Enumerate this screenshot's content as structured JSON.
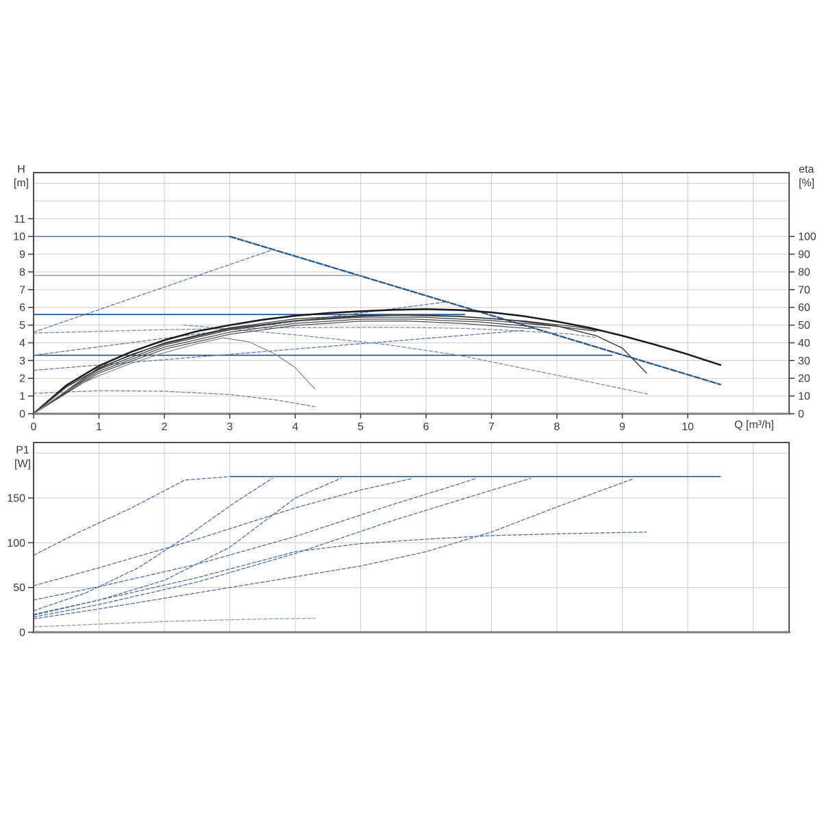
{
  "page": {
    "background": "#ffffff"
  },
  "colors": {
    "grid": "#cbcbcb",
    "border": "#4d4d4d",
    "axis_baseline": "#7d7d7d",
    "tick": "#3c3c3c",
    "label_text": "#3a3742",
    "solid_blue": "#20598f",
    "max_curve_blue": "#2a5a8c",
    "dashed_blue": "#5d7aa6",
    "grey_blue": "#6d81a4",
    "power_blue": "#4d6f9e",
    "eta_black": "#1c1c1c"
  },
  "chart_data": [
    {
      "id": "qh-chart",
      "type": "line",
      "title": "",
      "x": {
        "label": "Q [m³/h]",
        "min": 0,
        "max": 11.55,
        "ticks": [
          0,
          1,
          2,
          3,
          4,
          5,
          6,
          7,
          8,
          9,
          10
        ],
        "grid": [
          1,
          2,
          3,
          4,
          5,
          6,
          7,
          8,
          9,
          10,
          11
        ],
        "show_tick_labels": true
      },
      "y_left": {
        "label_top": "H",
        "label_unit": "[m]",
        "min": 0,
        "max": 13.6,
        "ticks": [
          0,
          1,
          2,
          3,
          4,
          5,
          6,
          7,
          8,
          9,
          10,
          11
        ],
        "grid": [
          1,
          2,
          3,
          4,
          5,
          6,
          7,
          8,
          9,
          10,
          11,
          12,
          13
        ]
      },
      "y_right": {
        "label_top": "eta",
        "label_unit": "[%]",
        "min": 0,
        "max": 136,
        "ticks": [
          0,
          10,
          20,
          30,
          40,
          50,
          60,
          70,
          80,
          90,
          100
        ]
      },
      "series": [
        {
          "name": "const-head-10m",
          "color": "#58749f",
          "width": 1.5,
          "points": [
            [
              0,
              10
            ],
            [
              3,
              10
            ]
          ]
        },
        {
          "name": "max-speed-qh-curve",
          "color": "#2a5a8c",
          "width": 2.4,
          "dash": "9 3",
          "points": [
            [
              3,
              10
            ],
            [
              10.5,
              1.65
            ]
          ]
        },
        {
          "name": "const-head-7-8m",
          "color": "#7d8aa5",
          "width": 1.3,
          "points": [
            [
              0,
              7.8
            ],
            [
              5.03,
              7.8
            ]
          ]
        },
        {
          "name": "const-head-5-6m",
          "color": "#20598f",
          "width": 1.7,
          "points": [
            [
              0,
              5.6
            ],
            [
              6.59,
              5.6
            ]
          ]
        },
        {
          "name": "const-head-3-3m",
          "color": "#20598f",
          "width": 1.7,
          "points": [
            [
              0,
              3.3
            ],
            [
              8.84,
              3.3
            ]
          ]
        },
        {
          "name": "prop-pressure-high",
          "color": "#5d7aa6",
          "width": 1.3,
          "dash": "5 3",
          "points": [
            [
              0,
              4.6
            ],
            [
              3.68,
              9.28
            ]
          ]
        },
        {
          "name": "prop-pressure-mid",
          "color": "#5d7aa6",
          "width": 1.3,
          "dash": "5 3",
          "points": [
            [
              0,
              3.3
            ],
            [
              6.35,
              6.33
            ]
          ]
        },
        {
          "name": "prop-pressure-low",
          "color": "#5d7aa6",
          "width": 1.3,
          "dash": "5 3",
          "points": [
            [
              0,
              2.45
            ],
            [
              7.5,
              4.7
            ]
          ]
        },
        {
          "name": "setpoint-arc",
          "color": "#6d81a4",
          "width": 1.2,
          "dash": "5 3",
          "points": [
            [
              0,
              4.55
            ],
            [
              2,
              4.74
            ],
            [
              4,
              4.86
            ],
            [
              5.5,
              4.88
            ],
            [
              6.5,
              4.82
            ],
            [
              7.2,
              4.72
            ],
            [
              8.2,
              4.5
            ],
            [
              8.6,
              4.3
            ]
          ]
        },
        {
          "name": "mid-speed-qh-curve",
          "color": "#6d81a4",
          "width": 1.2,
          "dash": "5 3",
          "points": [
            [
              2.3,
              5.0
            ],
            [
              4,
              4.45
            ],
            [
              5.4,
              3.9
            ],
            [
              6.5,
              3.3
            ],
            [
              7.5,
              2.55
            ],
            [
              8.3,
              1.95
            ],
            [
              9.4,
              1.1
            ]
          ]
        },
        {
          "name": "min-speed-qh-curve",
          "color": "#6d81a4",
          "width": 1.3,
          "dash": "5 3",
          "points": [
            [
              0,
              1.15
            ],
            [
              1,
              1.3
            ],
            [
              2,
              1.27
            ],
            [
              3,
              1.08
            ],
            [
              3.7,
              0.78
            ],
            [
              4.3,
              0.4
            ]
          ]
        },
        {
          "name": "eta-curve-max-speed",
          "right": true,
          "color": "#1c1c1c",
          "width": 2.6,
          "points": [
            [
              0,
              0
            ],
            [
              0.5,
              16
            ],
            [
              1,
              27
            ],
            [
              1.5,
              35
            ],
            [
              2,
              41.5
            ],
            [
              2.5,
              46.5
            ],
            [
              3,
              50
            ],
            [
              3.5,
              53
            ],
            [
              4,
              55.3
            ],
            [
              4.5,
              56.8
            ],
            [
              5,
              57.8
            ],
            [
              5.5,
              58.6
            ],
            [
              6,
              59
            ],
            [
              6.5,
              58.5
            ],
            [
              7,
              57.2
            ],
            [
              7.5,
              55
            ],
            [
              8,
              52
            ],
            [
              8.5,
              48.5
            ],
            [
              9,
              44
            ],
            [
              9.5,
              39
            ],
            [
              10,
              33.5
            ],
            [
              10.5,
              27.5
            ]
          ]
        },
        {
          "name": "eta-curve-2",
          "right": true,
          "color": "#3f3f3f",
          "width": 1.5,
          "points": [
            [
              0,
              0
            ],
            [
              0.5,
              15
            ],
            [
              1,
              25.5
            ],
            [
              1.5,
              33.5
            ],
            [
              2,
              39.5
            ],
            [
              3,
              48
            ],
            [
              4,
              52.5
            ],
            [
              5,
              55
            ],
            [
              5.7,
              55.8
            ],
            [
              6.5,
              55
            ],
            [
              7.3,
              52.8
            ],
            [
              8,
              49.5
            ],
            [
              8.6,
              44
            ],
            [
              9,
              37
            ],
            [
              9.37,
              23
            ]
          ]
        },
        {
          "name": "eta-curve-3",
          "right": true,
          "color": "#2e2e2e",
          "width": 1.2,
          "points": [
            [
              0,
              0
            ],
            [
              1,
              26
            ],
            [
              2,
              40
            ],
            [
              3,
              48.5
            ],
            [
              4,
              53.5
            ],
            [
              5,
              55.4
            ],
            [
              5.7,
              55.6
            ],
            [
              6.5,
              54.8
            ],
            [
              7.5,
              52.3
            ],
            [
              8.3,
              49
            ],
            [
              8.85,
              45.5
            ]
          ]
        },
        {
          "name": "eta-curve-4",
          "right": true,
          "color": "#383838",
          "width": 1.2,
          "points": [
            [
              0,
              0
            ],
            [
              1,
              25
            ],
            [
              2,
              38.8
            ],
            [
              3,
              47.3
            ],
            [
              4,
              52.3
            ],
            [
              5,
              54.4
            ],
            [
              5.9,
              54.5
            ],
            [
              7,
              52.6
            ],
            [
              8,
              49.3
            ],
            [
              8.6,
              46.5
            ]
          ]
        },
        {
          "name": "eta-curve-5",
          "right": true,
          "color": "#434343",
          "width": 1.2,
          "points": [
            [
              0,
              0
            ],
            [
              1,
              24
            ],
            [
              2,
              37.6
            ],
            [
              3,
              46
            ],
            [
              4,
              51
            ],
            [
              5,
              53.3
            ],
            [
              5.8,
              53.4
            ],
            [
              6.8,
              51.8
            ],
            [
              7.9,
              48.3
            ]
          ]
        },
        {
          "name": "eta-curve-6",
          "right": true,
          "color": "#4e4e4e",
          "width": 1.2,
          "points": [
            [
              0,
              0
            ],
            [
              1,
              23
            ],
            [
              2,
              36.4
            ],
            [
              3,
              44.8
            ],
            [
              4,
              49.8
            ],
            [
              5,
              52.2
            ],
            [
              5.7,
              52.3
            ],
            [
              6.6,
              50.8
            ],
            [
              7.6,
              48
            ]
          ]
        },
        {
          "name": "eta-curve-min-speed",
          "right": true,
          "color": "#8c8c8c",
          "width": 1.3,
          "points": [
            [
              0,
              0
            ],
            [
              0.5,
              13
            ],
            [
              1,
              21.5
            ],
            [
              1.5,
              28.5
            ],
            [
              2,
              34.5
            ],
            [
              2.5,
              39.5
            ],
            [
              2.9,
              42.8
            ],
            [
              3.3,
              40.5
            ],
            [
              3.7,
              33.5
            ],
            [
              4,
              26
            ],
            [
              4.3,
              14
            ]
          ]
        }
      ]
    },
    {
      "id": "p1-chart",
      "type": "line",
      "title": "",
      "x": {
        "label": "",
        "min": 0,
        "max": 11.55,
        "ticks": [],
        "grid": [
          1,
          2,
          3,
          4,
          5,
          6,
          7,
          8,
          9,
          10,
          11
        ],
        "show_tick_labels": false
      },
      "y_left": {
        "label_top": "P1",
        "label_unit": "[W]",
        "min": 0,
        "max": 212,
        "ticks": [
          0,
          50,
          100,
          150
        ],
        "grid": [
          50,
          100,
          150,
          200
        ]
      },
      "series": [
        {
          "name": "max-power-limit",
          "color": "#20598f",
          "width": 1.7,
          "points": [
            [
              3.0,
              174
            ],
            [
              10.5,
              174
            ]
          ]
        },
        {
          "name": "power-curve-1",
          "color": "#4d6f9e",
          "width": 1.3,
          "dash": "5 3",
          "points": [
            [
              0,
              86
            ],
            [
              0.7,
              112
            ],
            [
              1.5,
              139
            ],
            [
              2.31,
              170
            ],
            [
              3.0,
              174
            ]
          ]
        },
        {
          "name": "power-curve-2",
          "color": "#4d6f9e",
          "width": 1.3,
          "dash": "5 3",
          "points": [
            [
              0,
              24
            ],
            [
              0.8,
              44
            ],
            [
              1.6,
              72
            ],
            [
              2.4,
              110
            ],
            [
              3.1,
              146
            ],
            [
              3.65,
              172
            ]
          ]
        },
        {
          "name": "power-curve-3",
          "color": "#4d6f9e",
          "width": 1.3,
          "dash": "5 3",
          "points": [
            [
              0,
              19
            ],
            [
              1,
              36
            ],
            [
              2,
              58
            ],
            [
              3,
              95
            ],
            [
              4,
              150
            ],
            [
              4.7,
              172
            ]
          ]
        },
        {
          "name": "power-curve-4",
          "color": "#4d6f9e",
          "width": 1.3,
          "dash": "5 3",
          "points": [
            [
              0,
              52
            ],
            [
              1,
              72
            ],
            [
              2.5,
              104
            ],
            [
              4,
              139
            ],
            [
              5,
              159
            ],
            [
              5.8,
              172
            ]
          ]
        },
        {
          "name": "power-curve-5",
          "color": "#4d6f9e",
          "width": 1.3,
          "dash": "5 3",
          "points": [
            [
              0,
              36
            ],
            [
              1,
              51
            ],
            [
              2.5,
              76
            ],
            [
              4,
              107
            ],
            [
              5.5,
              143
            ],
            [
              6.3,
              161
            ],
            [
              6.77,
              172
            ]
          ]
        },
        {
          "name": "power-curve-6",
          "color": "#4d6f9e",
          "width": 1.3,
          "dash": "5 3",
          "points": [
            [
              0,
              17
            ],
            [
              1,
              31
            ],
            [
              2.5,
              56
            ],
            [
              4,
              88
            ],
            [
              5.5,
              125
            ],
            [
              6.7,
              152
            ],
            [
              7.6,
              172
            ]
          ]
        },
        {
          "name": "power-curve-7",
          "color": "#4d6f9e",
          "width": 1.3,
          "dash": "5 3",
          "points": [
            [
              0,
              15
            ],
            [
              1,
              26
            ],
            [
              2.5,
              44
            ],
            [
              4,
              62
            ],
            [
              5,
              74
            ],
            [
              6,
              90
            ],
            [
              7,
              112
            ],
            [
              8,
              140
            ],
            [
              8.7,
              159
            ],
            [
              9.15,
              171
            ]
          ]
        },
        {
          "name": "power-curve-8",
          "color": "#4d6f9e",
          "width": 1.3,
          "dash": "5 3",
          "points": [
            [
              0,
              20
            ],
            [
              1,
              36
            ],
            [
              2.5,
              61
            ],
            [
              4,
              90
            ],
            [
              5,
              99
            ],
            [
              6,
              104
            ],
            [
              7,
              108
            ],
            [
              8,
              110
            ],
            [
              9.37,
              112
            ]
          ]
        },
        {
          "name": "power-curve-min",
          "color": "#7f94b5",
          "width": 1.2,
          "dash": "5 3",
          "points": [
            [
              0,
              6
            ],
            [
              1,
              9
            ],
            [
              2,
              12
            ],
            [
              3,
              14
            ],
            [
              3.7,
              15
            ],
            [
              4.3,
              15.5
            ]
          ]
        }
      ]
    }
  ]
}
